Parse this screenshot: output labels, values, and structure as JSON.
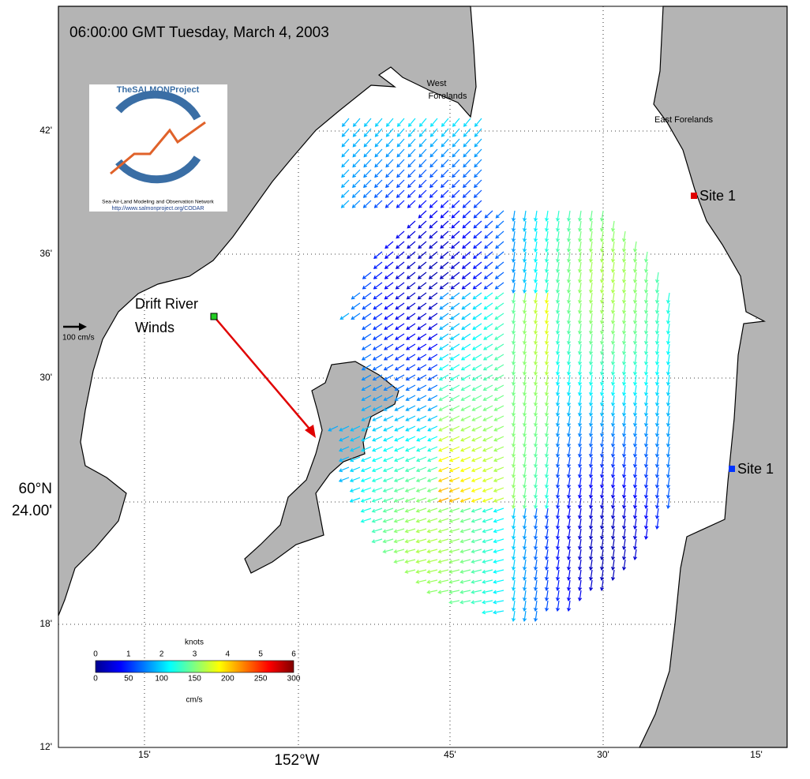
{
  "header": {
    "title": "06:00:00 GMT Tuesday, March 4, 2003"
  },
  "logo": {
    "name": "TheSALMONProject",
    "subtitle": "Sea-Air-Land Modeling and Observation Network",
    "url": "http://www.salmonproject.org/CODAR"
  },
  "places": {
    "west": [
      "West",
      "Forelands"
    ],
    "east": "East Forelands",
    "site_north": "Site 1",
    "site_south": "Site 1",
    "winds": [
      "Drift River",
      "Winds"
    ]
  },
  "scale_arrow": "100 cm/s",
  "axes": {
    "y_ticks": [
      "42'",
      "36'",
      "30'",
      "18'",
      "12'"
    ],
    "y_label": [
      "60°N",
      "24.00'"
    ],
    "x_ticks": [
      "15'",
      "45'",
      "30'",
      "15'"
    ],
    "x_label": "152°W"
  },
  "colorbar": {
    "top_title": "knots",
    "top_ticks": [
      0,
      1,
      2,
      3,
      4,
      5,
      6
    ],
    "bottom_ticks": [
      0,
      50,
      100,
      150,
      200,
      250,
      300
    ],
    "unit": "cm/s"
  }
}
